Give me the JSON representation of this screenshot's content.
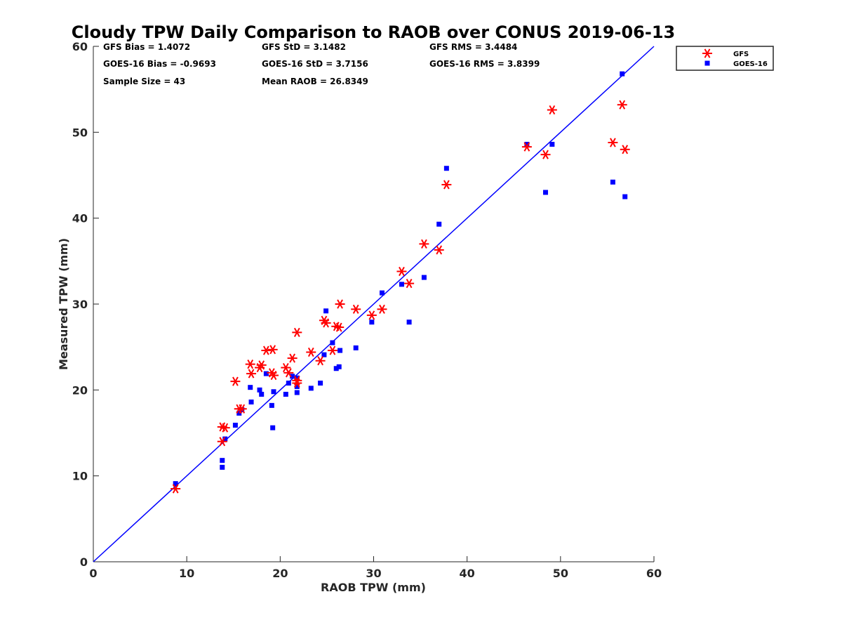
{
  "chart_data": {
    "type": "scatter",
    "title": "Cloudy TPW Daily Comparison to RAOB over CONUS 2019-06-13",
    "xlabel": "RAOB TPW (mm)",
    "ylabel": "Measured TPW (mm)",
    "xlim": [
      0,
      60
    ],
    "ylim": [
      0,
      60
    ],
    "xticks": [
      "0",
      "10",
      "20",
      "30",
      "40",
      "50",
      "60"
    ],
    "yticks": [
      "0",
      "10",
      "20",
      "30",
      "40",
      "50",
      "60"
    ],
    "grid": false,
    "legend_position": "outside top-right",
    "reference_line": {
      "from": [
        0,
        0
      ],
      "to": [
        60,
        60
      ],
      "color": "#0000ff"
    },
    "stats": {
      "gfs_bias": "GFS Bias = 1.4072",
      "goes_bias": "GOES-16 Bias = -0.9693",
      "sample_size": "Sample Size = 43",
      "gfs_std": "GFS StD = 3.1482",
      "goes_std": "GOES-16 StD = 3.7156",
      "mean_raob": "Mean RAOB = 26.8349",
      "gfs_rms": "GFS RMS = 3.4484",
      "goes_rms": "GOES-16 RMS = 3.8399"
    },
    "series": [
      {
        "name": "GFS",
        "marker": "asterisk",
        "color": "#ff0000",
        "points": [
          [
            8.8,
            8.5
          ],
          [
            13.8,
            14.0
          ],
          [
            13.8,
            15.7
          ],
          [
            14.1,
            15.6
          ],
          [
            15.2,
            21.0
          ],
          [
            15.6,
            17.8
          ],
          [
            15.9,
            17.8
          ],
          [
            16.8,
            23.0
          ],
          [
            16.9,
            21.9
          ],
          [
            17.8,
            22.6
          ],
          [
            18.0,
            22.9
          ],
          [
            18.5,
            24.6
          ],
          [
            19.1,
            22.0
          ],
          [
            19.2,
            24.7
          ],
          [
            19.3,
            21.7
          ],
          [
            20.6,
            22.6
          ],
          [
            20.9,
            22.0
          ],
          [
            21.3,
            23.7
          ],
          [
            21.8,
            21.1
          ],
          [
            21.8,
            20.8
          ],
          [
            21.8,
            26.7
          ],
          [
            23.3,
            24.4
          ],
          [
            24.3,
            23.4
          ],
          [
            24.7,
            28.1
          ],
          [
            24.9,
            27.8
          ],
          [
            25.6,
            24.6
          ],
          [
            26.0,
            27.4
          ],
          [
            26.3,
            27.3
          ],
          [
            26.4,
            30.0
          ],
          [
            28.1,
            29.4
          ],
          [
            29.8,
            28.7
          ],
          [
            30.9,
            29.4
          ],
          [
            33.0,
            33.8
          ],
          [
            33.8,
            32.4
          ],
          [
            35.4,
            37.0
          ],
          [
            37.0,
            36.3
          ],
          [
            37.8,
            43.9
          ],
          [
            46.4,
            48.3
          ],
          [
            48.4,
            47.4
          ],
          [
            49.1,
            52.6
          ],
          [
            55.6,
            48.8
          ],
          [
            56.6,
            53.2
          ],
          [
            56.9,
            48.0
          ]
        ]
      },
      {
        "name": "GOES-16",
        "marker": "square",
        "color": "#0000ff",
        "points": [
          [
            8.8,
            9.1
          ],
          [
            13.8,
            11.0
          ],
          [
            13.8,
            11.8
          ],
          [
            14.1,
            14.3
          ],
          [
            15.2,
            15.9
          ],
          [
            15.6,
            17.3
          ],
          [
            15.9,
            17.7
          ],
          [
            16.8,
            20.3
          ],
          [
            16.9,
            18.6
          ],
          [
            17.8,
            20.0
          ],
          [
            18.0,
            19.5
          ],
          [
            18.5,
            21.9
          ],
          [
            19.1,
            18.2
          ],
          [
            19.2,
            15.6
          ],
          [
            19.3,
            19.8
          ],
          [
            20.6,
            19.5
          ],
          [
            20.9,
            20.8
          ],
          [
            21.3,
            21.6
          ],
          [
            21.8,
            21.4
          ],
          [
            21.8,
            20.4
          ],
          [
            21.8,
            19.7
          ],
          [
            23.3,
            20.2
          ],
          [
            24.3,
            20.8
          ],
          [
            24.7,
            24.1
          ],
          [
            24.9,
            29.2
          ],
          [
            25.6,
            25.5
          ],
          [
            26.0,
            22.5
          ],
          [
            26.3,
            22.7
          ],
          [
            26.4,
            24.6
          ],
          [
            28.1,
            24.9
          ],
          [
            29.8,
            27.9
          ],
          [
            30.9,
            31.3
          ],
          [
            33.0,
            32.3
          ],
          [
            33.8,
            27.9
          ],
          [
            35.4,
            33.1
          ],
          [
            37.0,
            39.3
          ],
          [
            37.8,
            45.8
          ],
          [
            46.4,
            48.6
          ],
          [
            48.4,
            43.0
          ],
          [
            49.1,
            48.6
          ],
          [
            55.6,
            44.2
          ],
          [
            56.6,
            56.8
          ],
          [
            56.9,
            42.5
          ]
        ]
      }
    ]
  }
}
